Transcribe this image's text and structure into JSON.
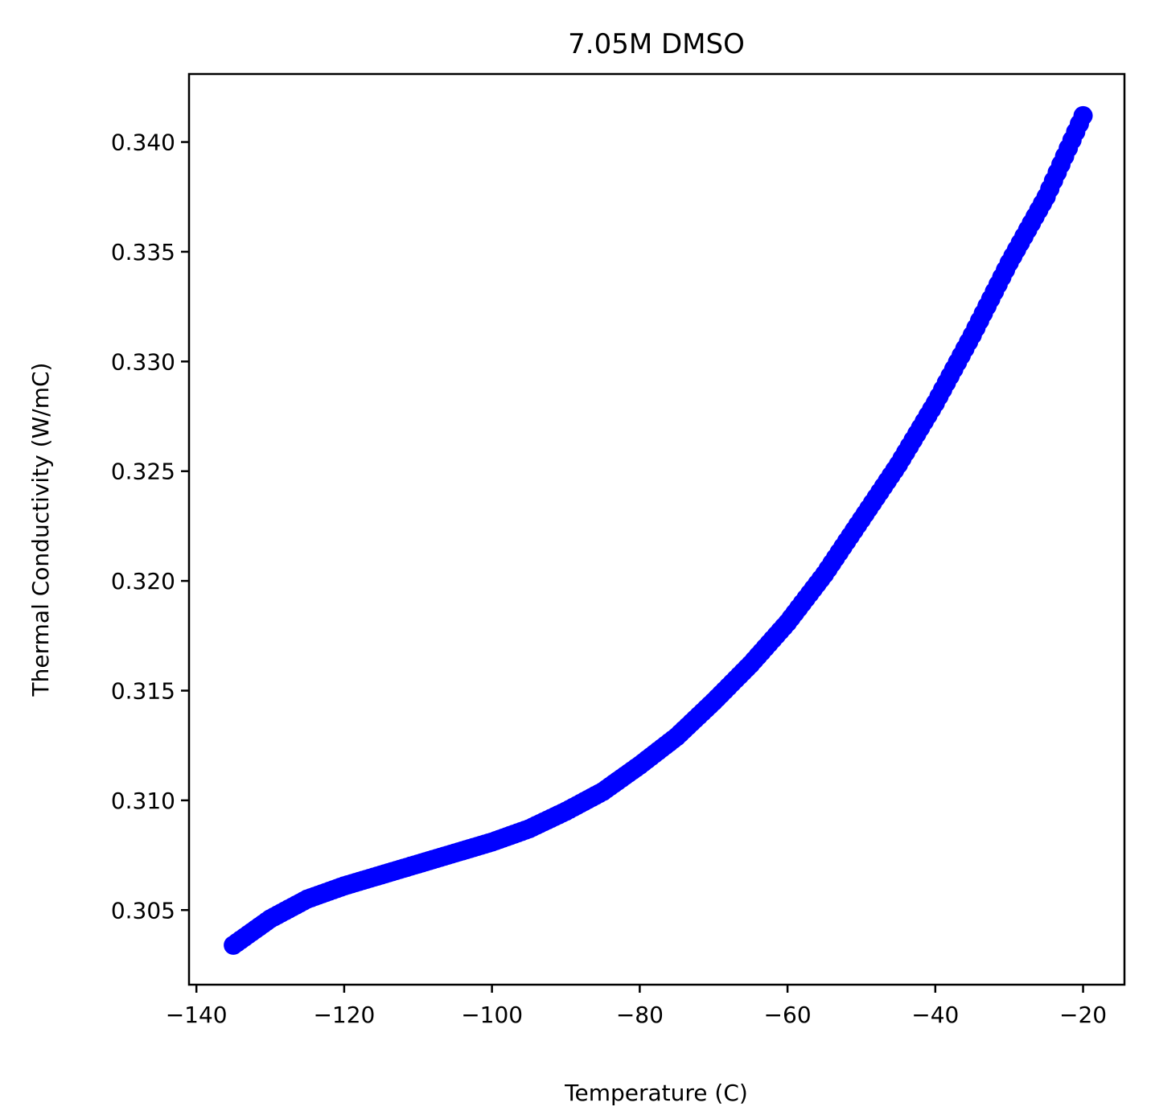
{
  "chart_data": {
    "type": "scatter",
    "title": "7.05M DMSO",
    "xlabel": "Temperature (C)",
    "ylabel": "Thermal Conductivity (W/mC)",
    "xlim": [
      -141,
      -14.4
    ],
    "ylim": [
      0.3016,
      0.3431
    ],
    "x_ticks": [
      -140,
      -120,
      -100,
      -80,
      -60,
      -40,
      -20
    ],
    "x_tick_labels": [
      "−140",
      "−120",
      "−100",
      "−80",
      "−60",
      "−40",
      "−20"
    ],
    "y_ticks": [
      0.305,
      0.31,
      0.315,
      0.32,
      0.325,
      0.33,
      0.335,
      0.34
    ],
    "y_tick_labels": [
      "0.305",
      "0.310",
      "0.315",
      "0.320",
      "0.325",
      "0.330",
      "0.335",
      "0.340"
    ],
    "grid": false,
    "marker_color": "#0000ff",
    "series": [
      {
        "x": [
          -135,
          -130,
          -125,
          -120,
          -115,
          -110,
          -105,
          -100,
          -95,
          -90,
          -85,
          -80,
          -75,
          -70,
          -65,
          -60,
          -55,
          -50,
          -45,
          -40,
          -35,
          -30,
          -25,
          -20
        ],
        "y": [
          0.3034,
          0.3046,
          0.3055,
          0.3061,
          0.3066,
          0.3071,
          0.3076,
          0.3081,
          0.3087,
          0.3095,
          0.3104,
          0.3116,
          0.3129,
          0.3145,
          0.3162,
          0.3181,
          0.3203,
          0.3228,
          0.3253,
          0.3281,
          0.3312,
          0.3345,
          0.3375,
          0.3412
        ]
      }
    ]
  }
}
